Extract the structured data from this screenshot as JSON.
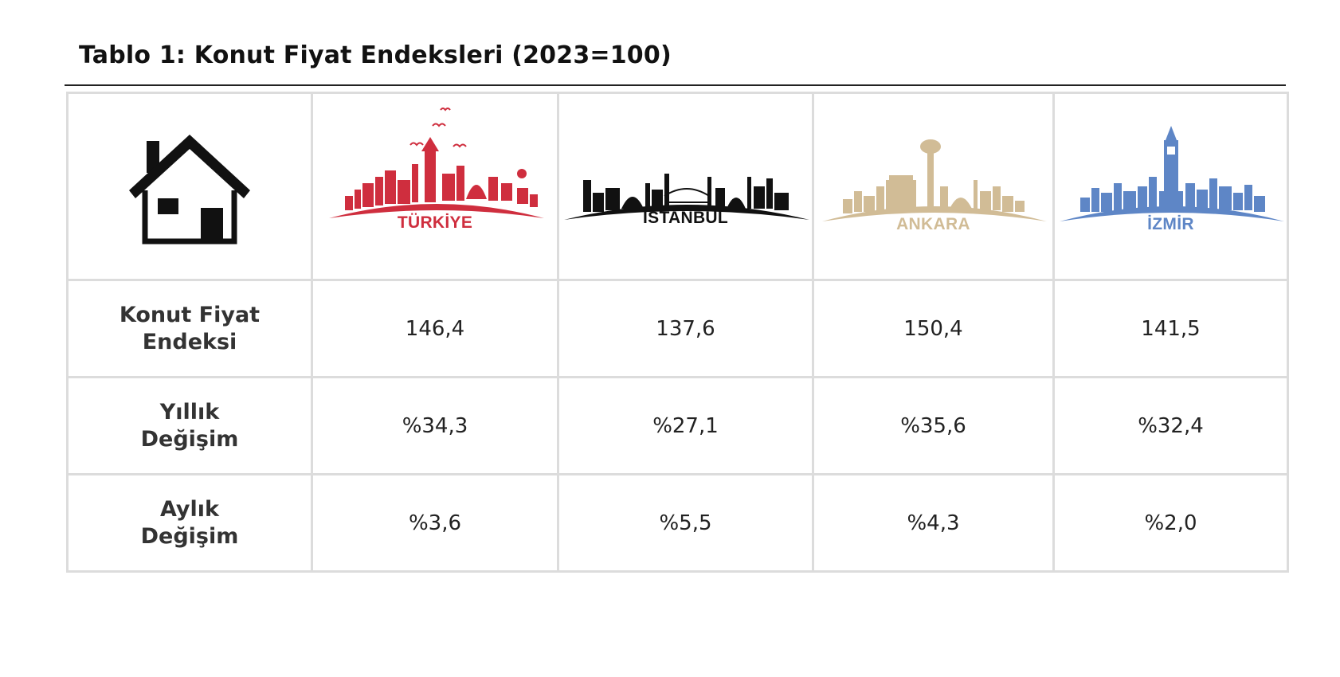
{
  "title": "Tablo 1: Konut Fiyat Endeksleri (2023=100)",
  "colors": {
    "turkiye": "#cf2e3e",
    "istanbul": "#111111",
    "ankara": "#d1bc96",
    "izmir": "#5e86c6",
    "grid": "#dcdcdc"
  },
  "header": {
    "icon": "house-icon",
    "cities": [
      {
        "key": "turkiye",
        "name": "TÜRKİYE"
      },
      {
        "key": "istanbul",
        "name": "İSTANBUL"
      },
      {
        "key": "ankara",
        "name": "ANKARA"
      },
      {
        "key": "izmir",
        "name": "İZMİR"
      }
    ]
  },
  "rows": [
    {
      "label_line1": "Konut Fiyat",
      "label_line2": "Endeksi",
      "values": [
        "146,4",
        "137,6",
        "150,4",
        "141,5"
      ]
    },
    {
      "label_line1": "Yıllık",
      "label_line2": "Değişim",
      "values": [
        "%34,3",
        "%27,1",
        "%35,6",
        "%32,4"
      ]
    },
    {
      "label_line1": "Aylık",
      "label_line2": "Değişim",
      "values": [
        "%3,6",
        "%5,5",
        "%4,3",
        "%2,0"
      ]
    }
  ]
}
